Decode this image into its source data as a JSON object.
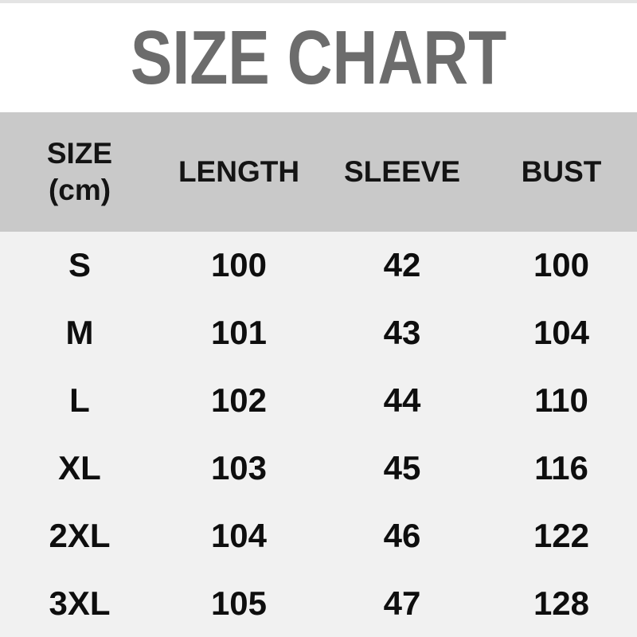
{
  "title": "SIZE CHART",
  "table": {
    "header": {
      "size_label": "SIZE",
      "size_unit": "(cm)",
      "length_label": "LENGTH",
      "sleeve_label": "SLEEVE",
      "bust_label": "BUST"
    },
    "rows": [
      {
        "size": "S",
        "length": "100",
        "sleeve": "42",
        "bust": "100"
      },
      {
        "size": "M",
        "length": "101",
        "sleeve": "43",
        "bust": "104"
      },
      {
        "size": "L",
        "length": "102",
        "sleeve": "44",
        "bust": "110"
      },
      {
        "size": "XL",
        "length": "103",
        "sleeve": "45",
        "bust": "116"
      },
      {
        "size": "2XL",
        "length": "104",
        "sleeve": "46",
        "bust": "122"
      },
      {
        "size": "3XL",
        "length": "105",
        "sleeve": "47",
        "bust": "128"
      }
    ]
  },
  "colors": {
    "title_gray": "#6c6c6c",
    "header_bg": "#c9c9c9",
    "body_bg": "#f1f1f1",
    "top_strip": "#e4e4e4",
    "text_black": "#0e0e0e"
  }
}
